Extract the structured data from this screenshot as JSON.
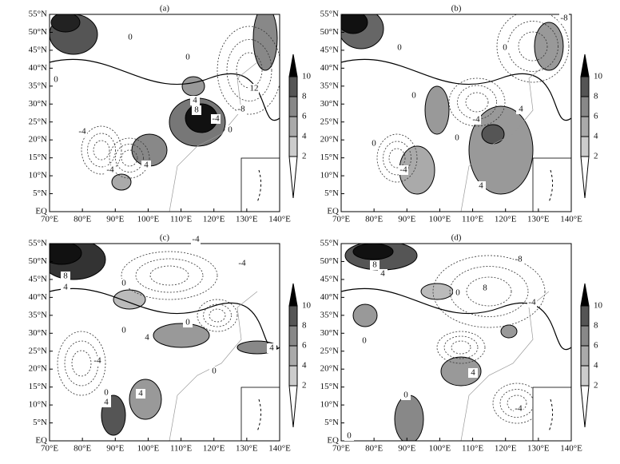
{
  "axes": {
    "x_labels": [
      "70°E",
      "80°E",
      "90°E",
      "100°E",
      "110°E",
      "120°E",
      "130°E",
      "140°E"
    ],
    "y_labels": [
      "EQ",
      "5°N",
      "10°N",
      "15°N",
      "20°N",
      "25°N",
      "30°N",
      "35°N",
      "40°N",
      "45°N",
      "50°N",
      "55°N"
    ]
  },
  "colorbar": {
    "ticks": [
      "2",
      "4",
      "6",
      "8",
      "10"
    ]
  },
  "panels": [
    {
      "label": "(a)",
      "contour_labels": [
        "0",
        "0",
        "0",
        "4",
        "8",
        "-4",
        "12",
        "-8",
        "4",
        "-4",
        "-4",
        "0"
      ]
    },
    {
      "label": "(b)",
      "contour_labels": [
        "-8",
        "0",
        "0",
        "0",
        "4",
        "4",
        "-4",
        "-4",
        "0",
        "0"
      ]
    },
    {
      "label": "(c)",
      "contour_labels": [
        "-4",
        "-4",
        "8",
        "4",
        "0",
        "0",
        "4",
        "0",
        "4",
        "-4",
        "4",
        "0",
        "4",
        "0"
      ]
    },
    {
      "label": "(d)",
      "contour_labels": [
        "8",
        "4",
        "-8",
        "8",
        "-4",
        "0",
        "0",
        "4",
        "0",
        "-4",
        "0"
      ]
    }
  ]
}
